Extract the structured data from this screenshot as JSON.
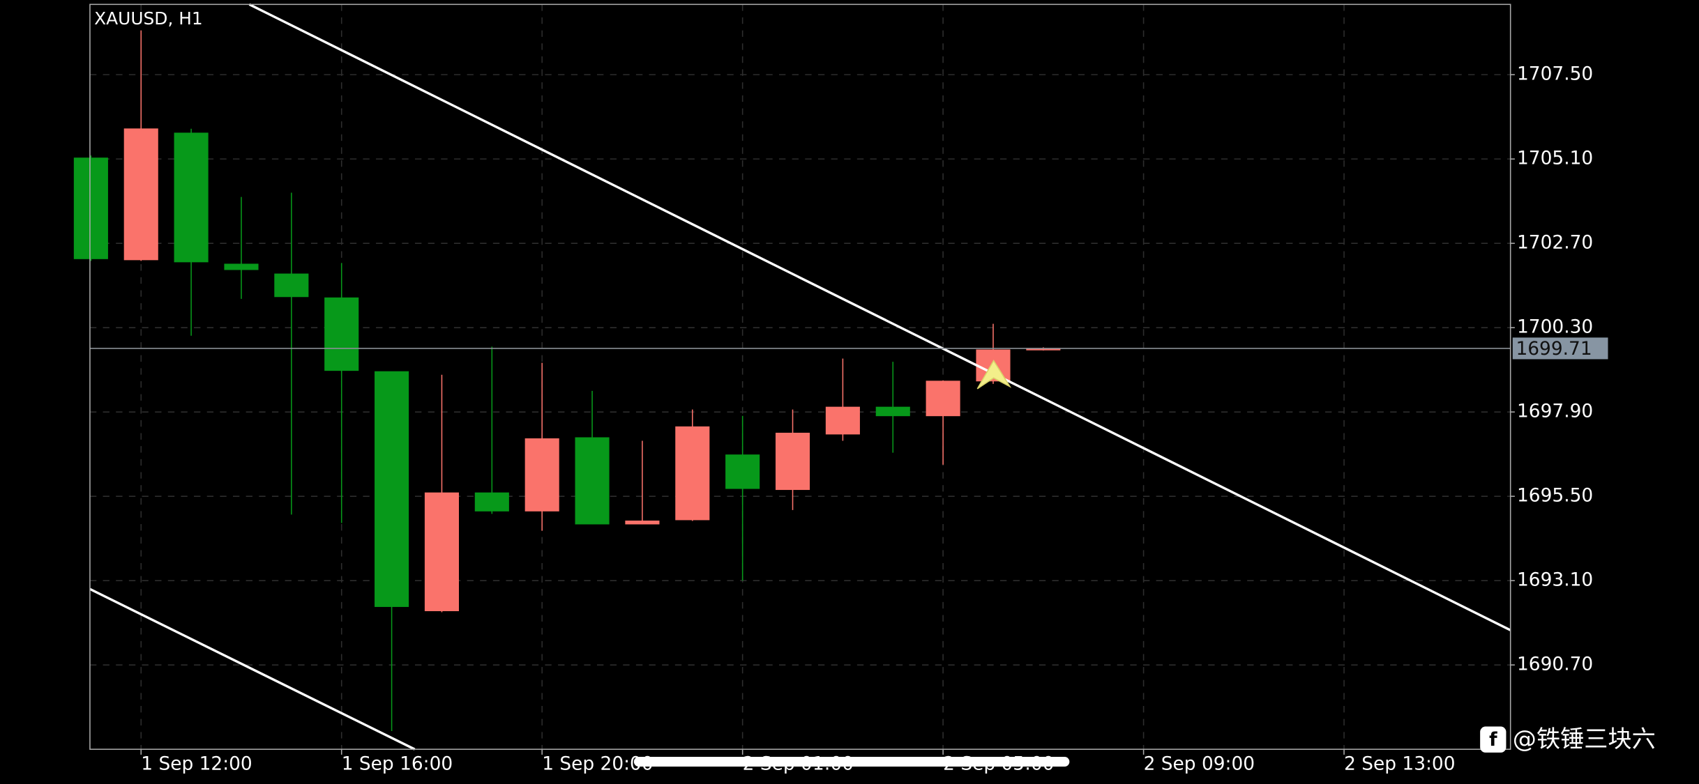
{
  "chart_data": {
    "type": "candlestick",
    "title": "XAUUSD, H1",
    "x": [
      0,
      1,
      2,
      3,
      4,
      5,
      6,
      7,
      8,
      9,
      10,
      11,
      12,
      13,
      14,
      15,
      16,
      17,
      18,
      19
    ],
    "open": [
      1705.13,
      1702.23,
      1705.84,
      1702.11,
      1701.83,
      1701.15,
      1699.05,
      1692.24,
      1695.6,
      1695.08,
      1697.17,
      1694.71,
      1694.83,
      1696.68,
      1695.69,
      1697.27,
      1698.04,
      1697.79,
      1698.78,
      1699.67
    ],
    "high": [
      1705.2,
      1708.76,
      1705.96,
      1704.02,
      1704.14,
      1702.14,
      1699.05,
      1698.96,
      1699.76,
      1699.3,
      1698.5,
      1697.08,
      1697.97,
      1697.79,
      1697.97,
      1699.42,
      1699.33,
      1698.8,
      1700.41,
      1699.74
    ],
    "low": [
      1702.2,
      1702.2,
      1700.07,
      1701.12,
      1694.98,
      1694.74,
      1688.82,
      1692.2,
      1695.0,
      1694.52,
      1694.7,
      1694.7,
      1694.8,
      1693.1,
      1695.11,
      1697.08,
      1696.74,
      1696.4,
      1698.7,
      1699.65
    ],
    "close": [
      1702.26,
      1705.96,
      1702.17,
      1701.95,
      1701.18,
      1699.08,
      1692.36,
      1695.6,
      1695.08,
      1697.14,
      1694.71,
      1694.8,
      1697.48,
      1695.72,
      1697.3,
      1698.04,
      1697.79,
      1698.78,
      1699.67,
      1699.71
    ],
    "up_color": "#fa736b",
    "down_color": "#07991a",
    "current_price": 1699.71,
    "trend_lines": [
      {
        "x": [
          3.16,
          28.32
        ],
        "y": [
          1709.5,
          1691.69
        ]
      },
      {
        "x": [
          -0.02,
          6.46
        ],
        "y": [
          1692.86,
          1688.3
        ]
      }
    ],
    "xlim": [
      -0.02,
      28.32
    ],
    "ylim": [
      1688.3,
      1709.5
    ],
    "xticks": [
      {
        "value": 1,
        "label": "1 Sep 12:00"
      },
      {
        "value": 5,
        "label": "1 Sep 16:00"
      },
      {
        "value": 9,
        "label": "1 Sep 20:00"
      },
      {
        "value": 13,
        "label": "2 Sep 01:00"
      },
      {
        "value": 17,
        "label": "2 Sep 05:00"
      },
      {
        "value": 21,
        "label": "2 Sep 09:00"
      },
      {
        "value": 25,
        "label": "2 Sep 13:00"
      }
    ],
    "yticks": [
      {
        "value": 1707.5,
        "label": "1707.50"
      },
      {
        "value": 1705.1,
        "label": "1705.10"
      },
      {
        "value": 1702.7,
        "label": "1702.70"
      },
      {
        "value": 1700.3,
        "label": "1700.30"
      },
      {
        "value": 1697.9,
        "label": "1697.90"
      },
      {
        "value": 1695.5,
        "label": "1695.50"
      },
      {
        "value": 1693.1,
        "label": "1693.10"
      },
      {
        "value": 1690.7,
        "label": "1690.70"
      }
    ],
    "grid": true,
    "watermark": "@铁锤三块六"
  }
}
